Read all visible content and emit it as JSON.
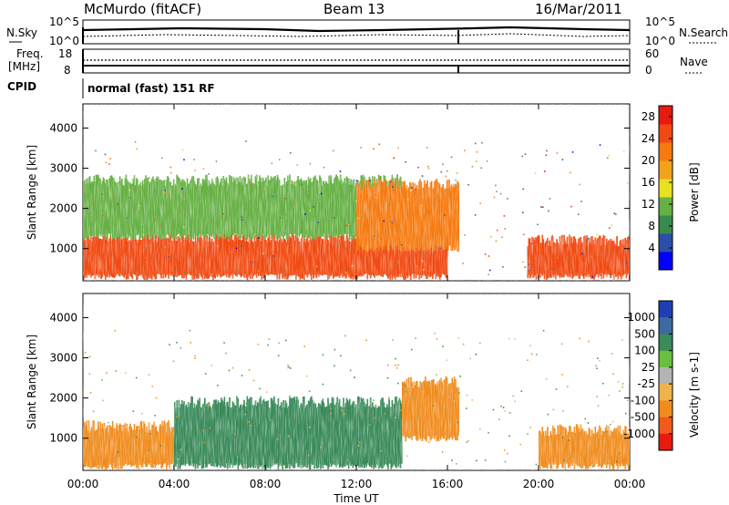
{
  "header": {
    "station": "McMurdo (fitACF)",
    "beam": "Beam 13",
    "date": "16/Mar/2011"
  },
  "top_panels": {
    "nsky_label": "N.Sky",
    "nsky_ticks": [
      "10^5",
      "10^0"
    ],
    "nsearch_label": "N.Search",
    "nsearch_ticks": [
      "10^5",
      "10^0"
    ],
    "freq_label_1": "Freq.",
    "freq_label_2": "[MHz]",
    "freq_ticks": [
      "18",
      "8"
    ],
    "nave_label": "Nave",
    "nave_ticks": [
      "60",
      "0"
    ],
    "cpid_label": "CPID",
    "cpid_text": "normal (fast) 151 RF"
  },
  "colors": {
    "power_scale": [
      "#0000ff",
      "#2b4fa8",
      "#3a8a4e",
      "#66b044",
      "#e8e020",
      "#f2a21a",
      "#f57a10",
      "#f04a12",
      "#e61a10"
    ],
    "velocity_scale": [
      "#1e3fb4",
      "#3d6aa0",
      "#3a8a5a",
      "#6abf40",
      "#b4b4b4",
      "#f0b24a",
      "#f08c1e",
      "#f05a1a",
      "#e61a10"
    ]
  },
  "chart_data": [
    {
      "type": "heatmap",
      "panel": "power",
      "ylabel": "Slant Range [km]",
      "yticks": [
        "1000",
        "2000",
        "3000",
        "4000"
      ],
      "ylim": [
        200,
        4600
      ],
      "xlim": [
        "00:00",
        "24:00"
      ],
      "colorbar": {
        "label": "Power [dB]",
        "ticks": [
          "4",
          "8",
          "12",
          "16",
          "20",
          "24",
          "28"
        ],
        "range": [
          0,
          30
        ]
      },
      "echo_bands": [
        {
          "t_start": 0,
          "t_end": 16,
          "range_km": [
            300,
            1300
          ],
          "power_db": 28
        },
        {
          "t_start": 0,
          "t_end": 14,
          "range_km": [
            1300,
            2700
          ],
          "power_db": 10
        },
        {
          "t_start": 12,
          "t_end": 16.5,
          "range_km": [
            1000,
            2600
          ],
          "power_db": 22
        },
        {
          "t_start": 19.5,
          "t_end": 24,
          "range_km": [
            300,
            1200
          ],
          "power_db": 28
        }
      ]
    },
    {
      "type": "heatmap",
      "panel": "velocity",
      "ylabel": "Slant Range [km]",
      "xlabel": "Time UT",
      "yticks": [
        "1000",
        "2000",
        "3000",
        "4000"
      ],
      "xticks": [
        "00:00",
        "04:00",
        "08:00",
        "12:00",
        "16:00",
        "20:00",
        "00:00"
      ],
      "ylim": [
        200,
        4600
      ],
      "colorbar": {
        "label": "Velocity [m s-1]",
        "ticks": [
          "1000",
          "500",
          "100",
          "25",
          "-25",
          "-100",
          "-500",
          "-1000"
        ]
      },
      "echo_bands": [
        {
          "t_start": 0,
          "t_end": 4,
          "range_km": [
            300,
            1300
          ],
          "velocity_ms": -300
        },
        {
          "t_start": 4,
          "t_end": 14,
          "range_km": [
            300,
            1900
          ],
          "velocity_ms": 200
        },
        {
          "t_start": 14,
          "t_end": 16.5,
          "range_km": [
            1000,
            2400
          ],
          "velocity_ms": -200
        },
        {
          "t_start": 20,
          "t_end": 24,
          "range_km": [
            300,
            1200
          ],
          "velocity_ms": -300
        }
      ]
    }
  ]
}
